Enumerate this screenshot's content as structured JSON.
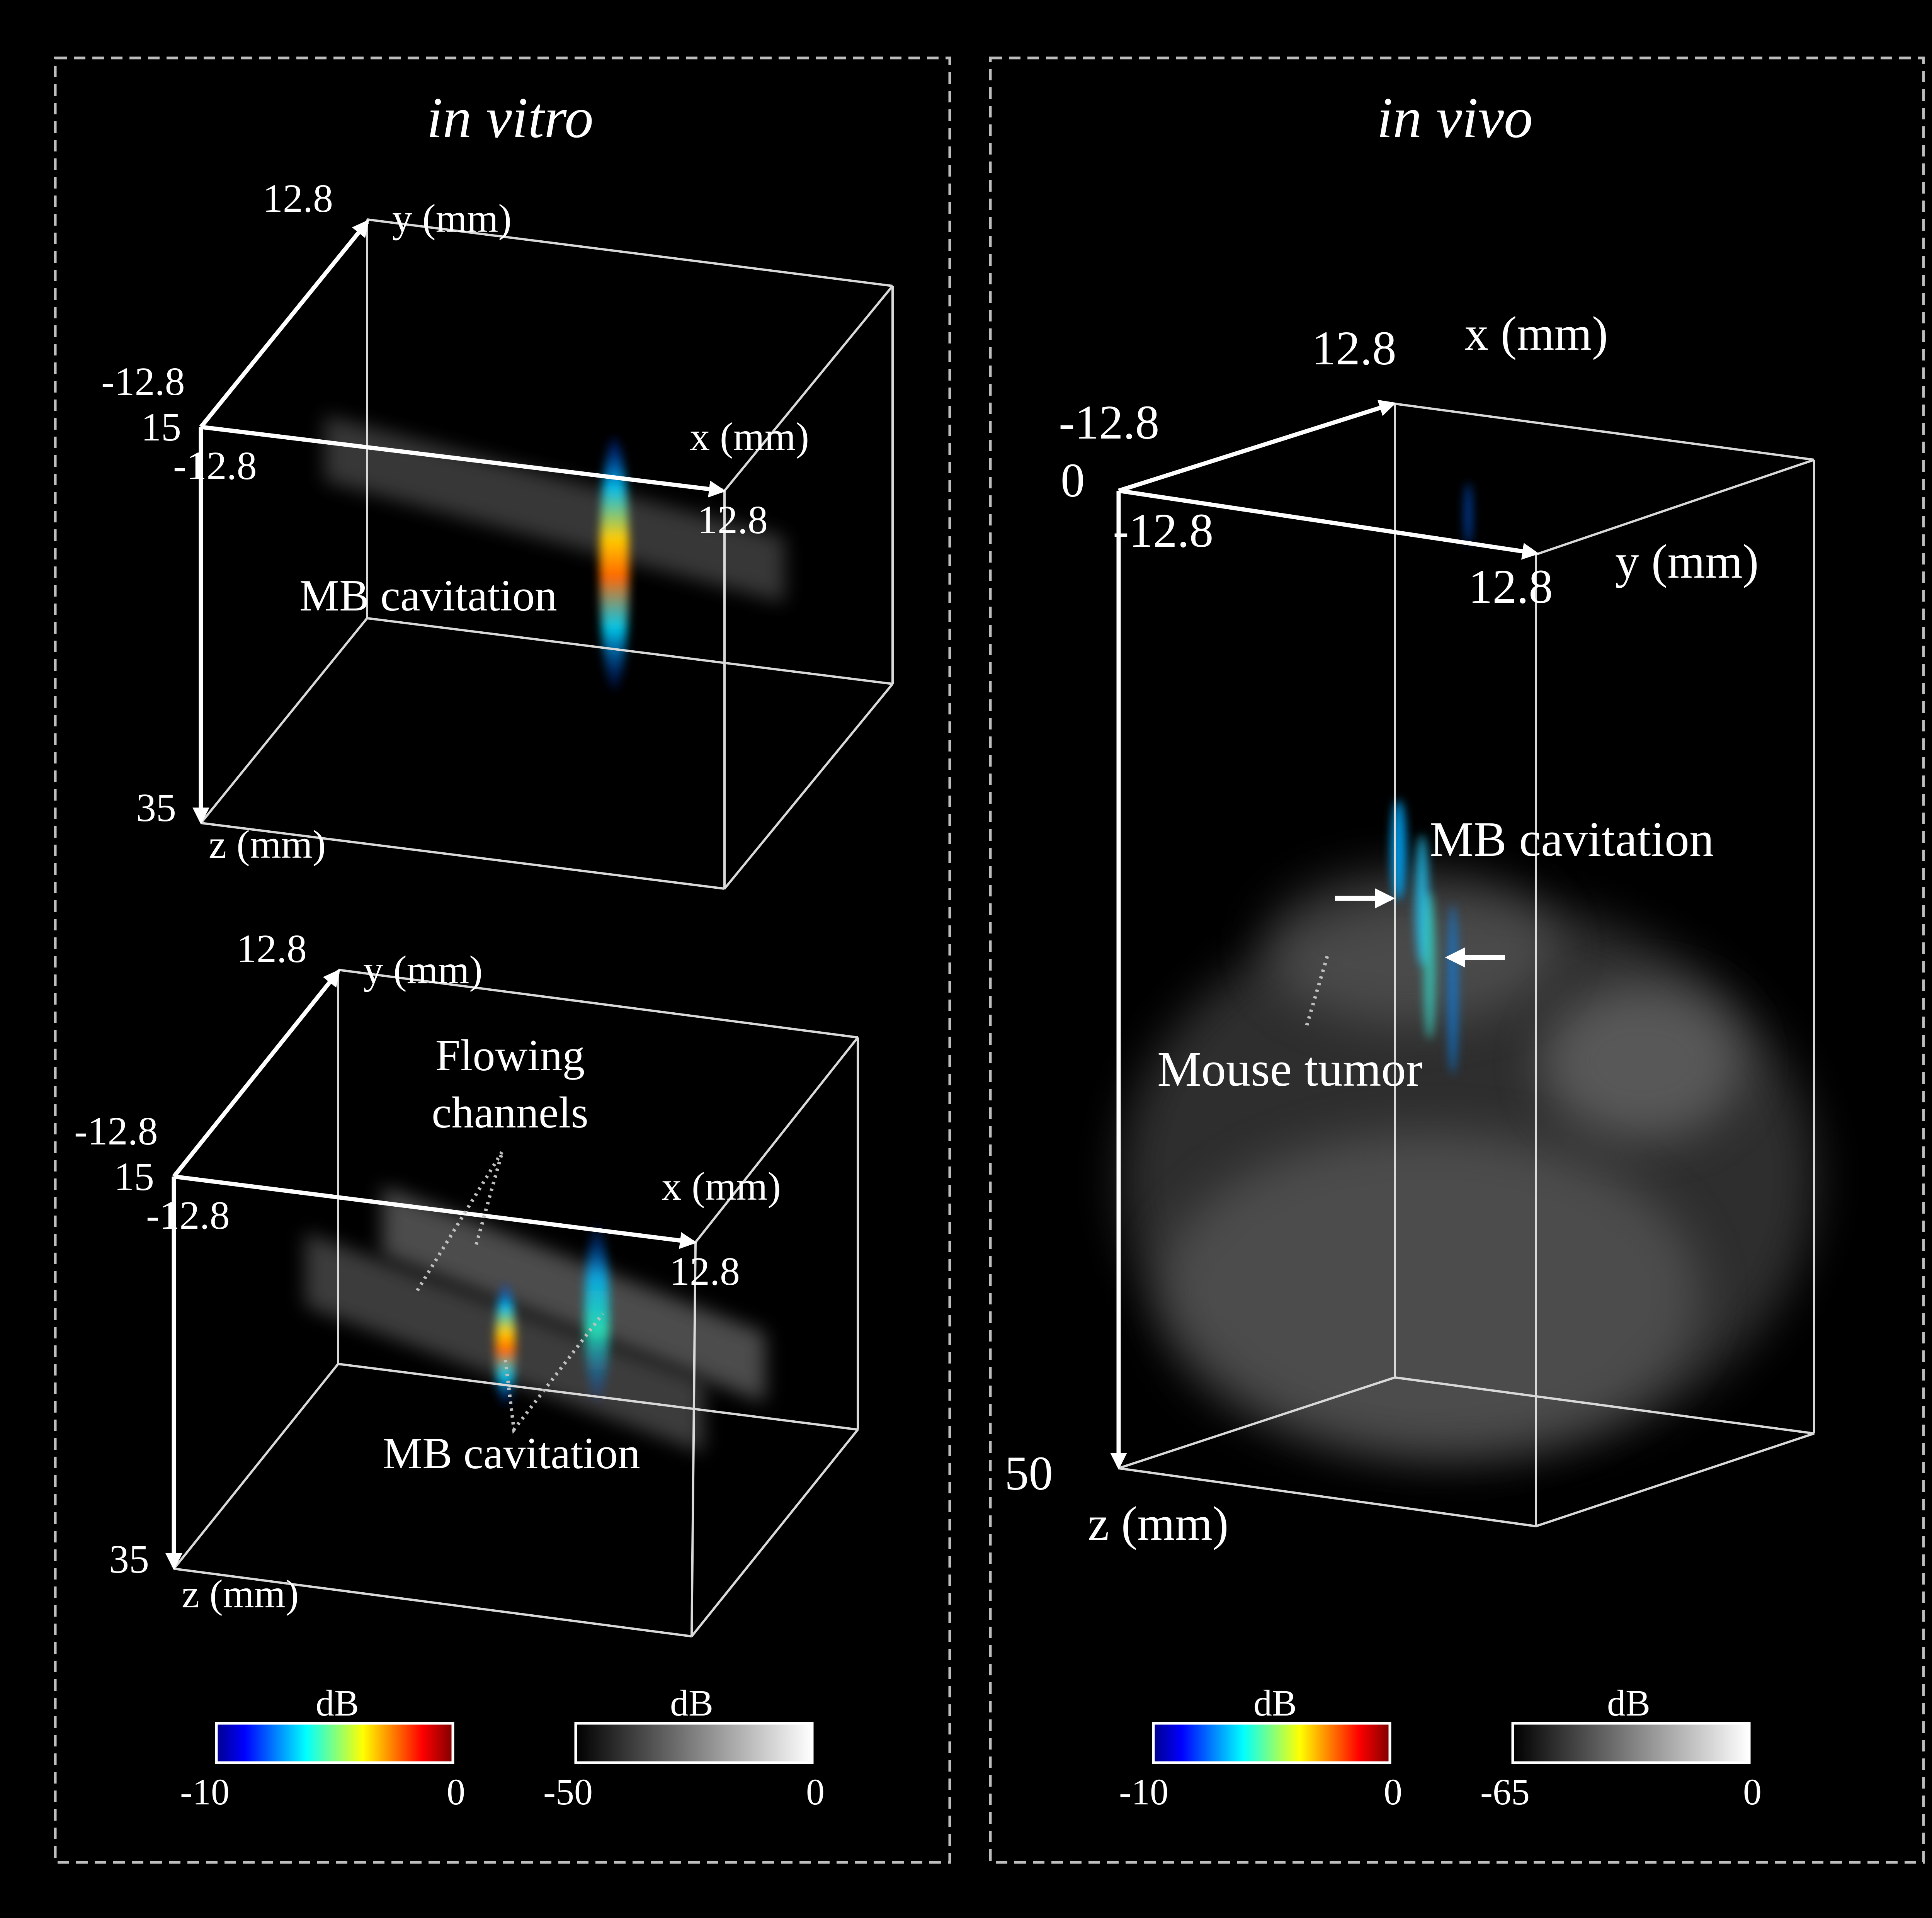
{
  "panels": {
    "in_vitro": {
      "title": "in vitro",
      "volume_top": {
        "y_max": "12.8",
        "y_label": "y (mm)",
        "y_min": "-12.8",
        "z_min": "15",
        "x_min": "-12.8",
        "x_label": "x (mm)",
        "x_max": "12.8",
        "cavitation_label": "MB cavitation",
        "z_max": "35",
        "z_label": "z (mm)"
      },
      "volume_bottom": {
        "y_max": "12.8",
        "y_label": "y (mm)",
        "channels_label_line1": "Flowing",
        "channels_label_line2": "channels",
        "y_min": "-12.8",
        "z_min": "15",
        "x_min": "-12.8",
        "x_label": "x (mm)",
        "x_max": "12.8",
        "cavitation_label": "MB cavitation",
        "z_max": "35",
        "z_label": "z (mm)"
      },
      "colorbar_jet": {
        "unit": "dB",
        "min": "-10",
        "max": "0"
      },
      "colorbar_gray": {
        "unit": "dB",
        "min": "-50",
        "max": "0"
      }
    },
    "in_vivo": {
      "title": "in vivo",
      "volume": {
        "x_max": "12.8",
        "x_label": "x (mm)",
        "x_min": "-12.8",
        "z_min": "0",
        "y_min": "-12.8",
        "y_max": "12.8",
        "y_label": "y (mm)",
        "cavitation_label": "MB cavitation",
        "tumor_label": "Mouse tumor",
        "z_max": "50",
        "z_label": "z (mm)"
      },
      "colorbar_jet": {
        "unit": "dB",
        "min": "-10",
        "max": "0"
      },
      "colorbar_gray": {
        "unit": "dB",
        "min": "-65",
        "max": "0"
      }
    }
  },
  "colors": {
    "background": "#000000",
    "box_edges": "#d9d9d9",
    "panel_border": "#bdbdbd",
    "jet": [
      "#00008f",
      "#0000ff",
      "#00ffff",
      "#ffff00",
      "#ff0000",
      "#800000"
    ],
    "gray": [
      "#000000",
      "#ffffff"
    ]
  }
}
